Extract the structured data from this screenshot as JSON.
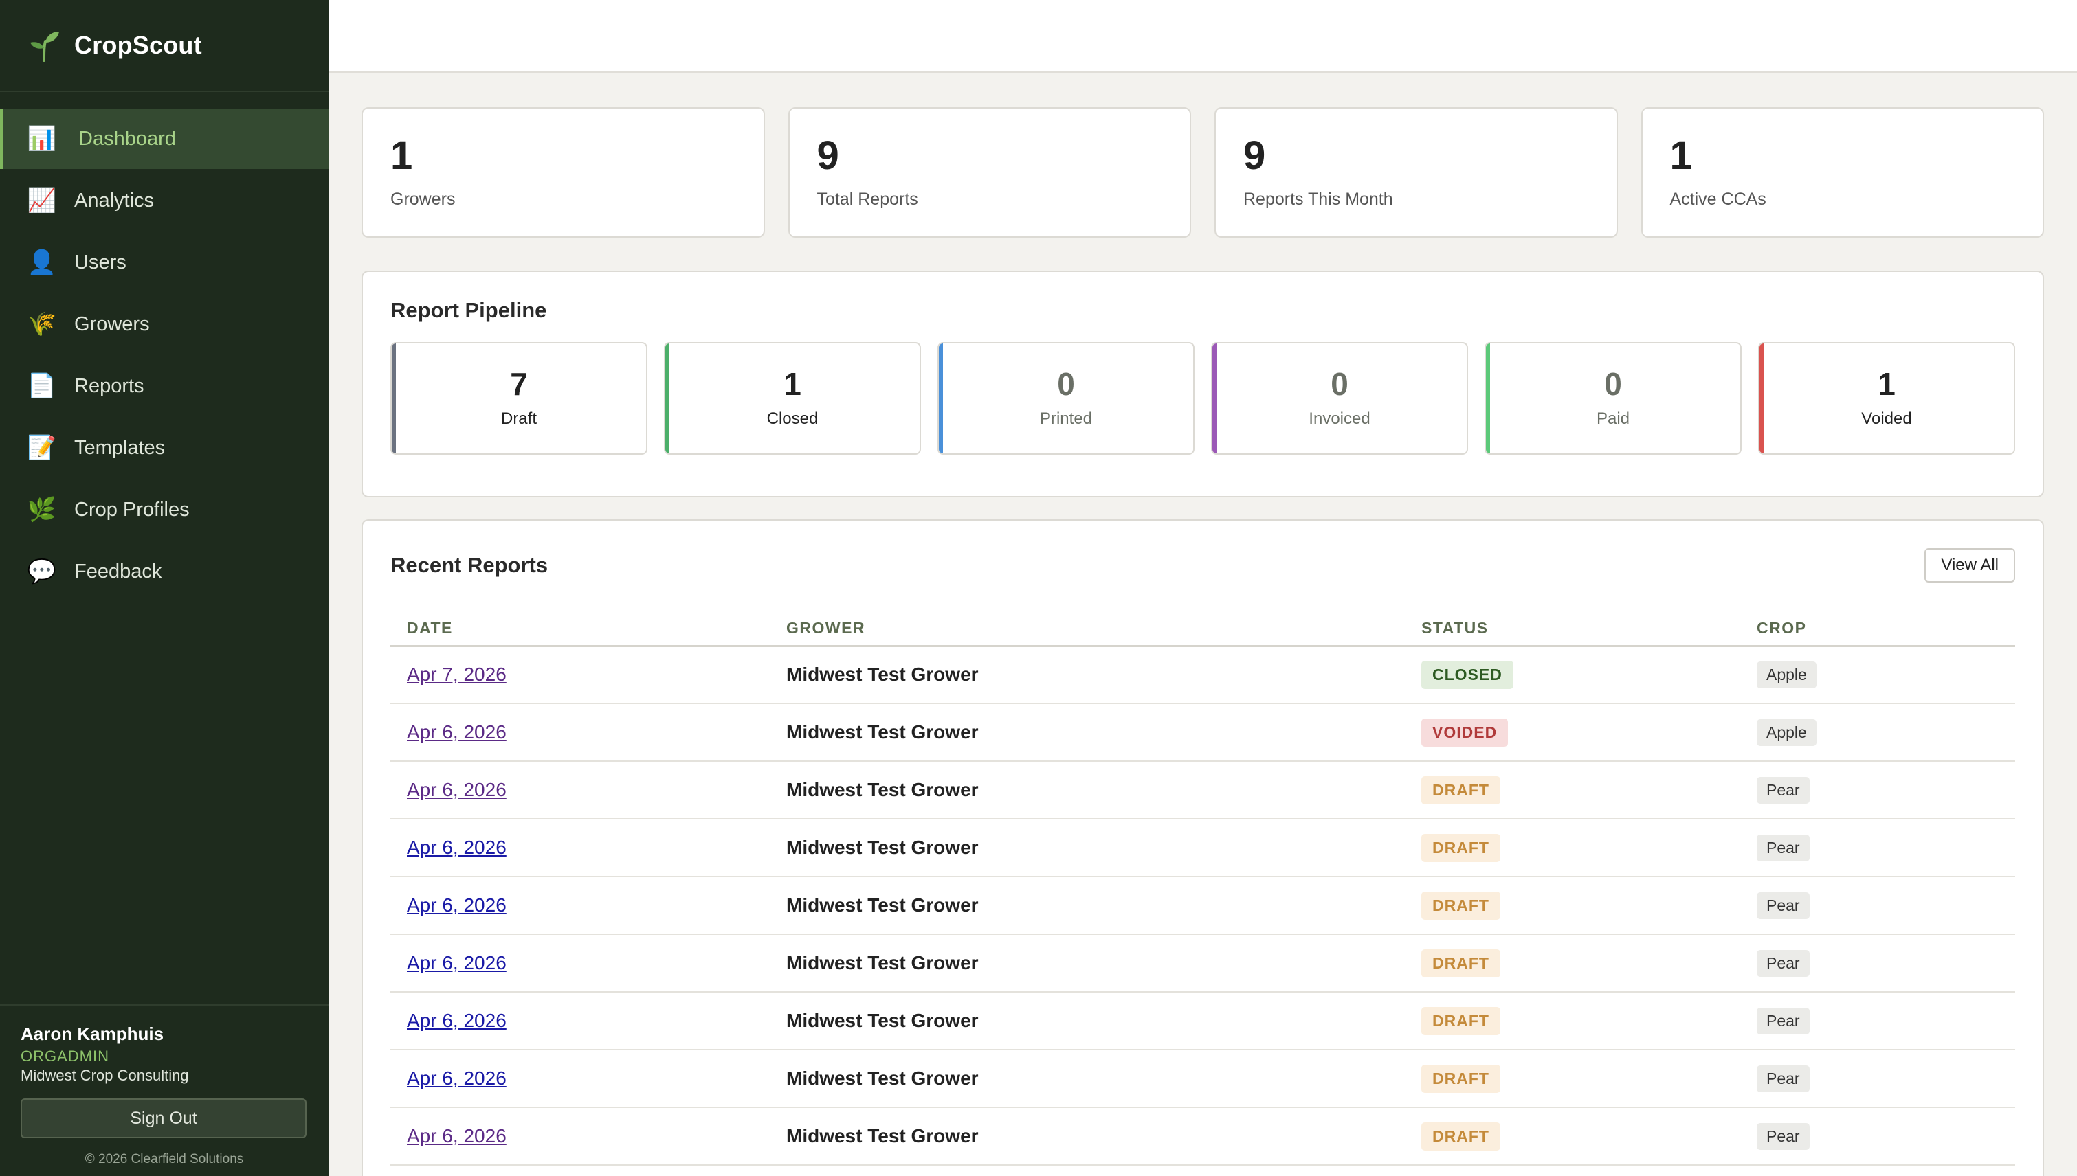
{
  "app": {
    "name": "CropScout"
  },
  "sidebar": {
    "items": [
      {
        "label": "Dashboard",
        "icon": "bar-chart-icon",
        "glyph": "📊",
        "active": true
      },
      {
        "label": "Analytics",
        "icon": "trend-chart-icon",
        "glyph": "📈",
        "active": false
      },
      {
        "label": "Users",
        "icon": "user-icon",
        "glyph": "👤",
        "active": false
      },
      {
        "label": "Growers",
        "icon": "rice-sheaf-icon",
        "glyph": "🌾",
        "active": false
      },
      {
        "label": "Reports",
        "icon": "document-icon",
        "glyph": "📄",
        "active": false
      },
      {
        "label": "Templates",
        "icon": "memo-icon",
        "glyph": "📝",
        "active": false
      },
      {
        "label": "Crop Profiles",
        "icon": "herb-icon",
        "glyph": "🌿",
        "active": false
      },
      {
        "label": "Feedback",
        "icon": "speech-bubble-icon",
        "glyph": "💬",
        "active": false
      }
    ],
    "user": {
      "name": "Aaron Kamphuis",
      "role": "ORGADMIN",
      "org": "Midwest Crop Consulting"
    },
    "signout_label": "Sign Out",
    "copyright": "© 2026 Clearfield Solutions"
  },
  "stats": [
    {
      "value": "1",
      "label": "Growers"
    },
    {
      "value": "9",
      "label": "Total Reports"
    },
    {
      "value": "9",
      "label": "Reports This Month"
    },
    {
      "value": "1",
      "label": "Active CCAs"
    }
  ],
  "pipeline": {
    "title": "Report Pipeline",
    "stages": [
      {
        "value": "7",
        "label": "Draft",
        "color": "#6b7280"
      },
      {
        "value": "1",
        "label": "Closed",
        "color": "#4caf6a"
      },
      {
        "value": "0",
        "label": "Printed",
        "color": "#4a90d9"
      },
      {
        "value": "0",
        "label": "Invoiced",
        "color": "#9b59b6"
      },
      {
        "value": "0",
        "label": "Paid",
        "color": "#5cc97a"
      },
      {
        "value": "1",
        "label": "Voided",
        "color": "#d9534f"
      }
    ]
  },
  "recent": {
    "title": "Recent Reports",
    "view_all_label": "View All",
    "columns": [
      "DATE",
      "GROWER",
      "STATUS",
      "CROP"
    ],
    "rows": [
      {
        "date": "Apr 7, 2026",
        "grower": "Midwest Test Grower",
        "status": "CLOSED",
        "crop": "Apple",
        "visited": true
      },
      {
        "date": "Apr 6, 2026",
        "grower": "Midwest Test Grower",
        "status": "VOIDED",
        "crop": "Apple",
        "visited": true
      },
      {
        "date": "Apr 6, 2026",
        "grower": "Midwest Test Grower",
        "status": "DRAFT",
        "crop": "Pear",
        "visited": true
      },
      {
        "date": "Apr 6, 2026",
        "grower": "Midwest Test Grower",
        "status": "DRAFT",
        "crop": "Pear",
        "visited": false
      },
      {
        "date": "Apr 6, 2026",
        "grower": "Midwest Test Grower",
        "status": "DRAFT",
        "crop": "Pear",
        "visited": false
      },
      {
        "date": "Apr 6, 2026",
        "grower": "Midwest Test Grower",
        "status": "DRAFT",
        "crop": "Pear",
        "visited": false
      },
      {
        "date": "Apr 6, 2026",
        "grower": "Midwest Test Grower",
        "status": "DRAFT",
        "crop": "Pear",
        "visited": false
      },
      {
        "date": "Apr 6, 2026",
        "grower": "Midwest Test Grower",
        "status": "DRAFT",
        "crop": "Pear",
        "visited": false
      },
      {
        "date": "Apr 6, 2026",
        "grower": "Midwest Test Grower",
        "status": "DRAFT",
        "crop": "Pear",
        "visited": true
      }
    ]
  }
}
